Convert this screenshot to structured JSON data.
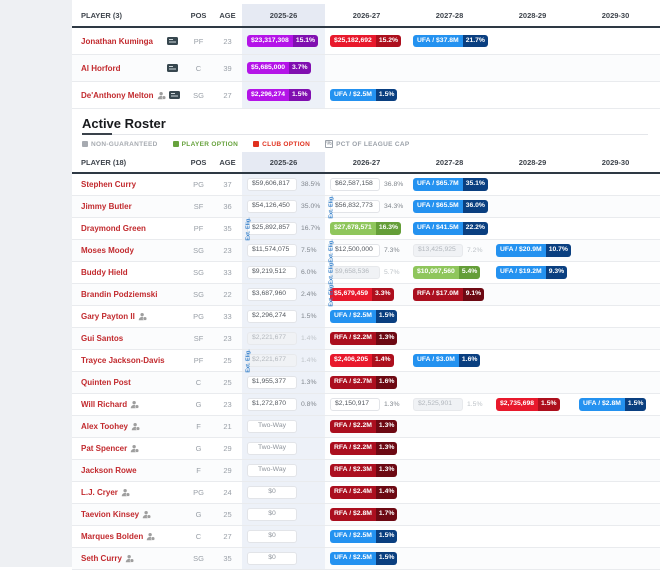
{
  "columns": {
    "player_pending": "PLAYER (3)",
    "player_active": "PLAYER (18)",
    "pos": "POS",
    "age": "AGE",
    "years": [
      "2025-26",
      "2026-27",
      "2027-28",
      "2028-29",
      "2029-30"
    ]
  },
  "active_section": {
    "title": "Active Roster",
    "legend": {
      "non_guaranteed": "NON-GUARANTEED",
      "player_option": "PLAYER OPTION",
      "club_option": "CLUB OPTION",
      "pct_cap": "PCT OF LEAGUE CAP",
      "pct_glyph": "%"
    }
  },
  "colors": {
    "cap_hold": "#b414e8",
    "cap_hold_dark": "#800fb0",
    "club_option": "#e8192c",
    "club_option_dark": "#ad0f1d",
    "player_option": "#8fc65c",
    "player_option_dark": "#649e38",
    "ufa": "#2492f0",
    "ufa_dark": "#0a3f80",
    "rfa": "#ab0f1f",
    "rfa_dark": "#6d0913",
    "non_guaranteed_bg": "#f0f2f5",
    "player_link": "#c22a2e",
    "column_highlight": "#edf1f8"
  },
  "ext_label": "Ext. Elig.",
  "pending": {
    "rows": [
      {
        "name": "Jonathan Kuminga",
        "pos": "PF",
        "age": "23",
        "contract": true,
        "status": false,
        "slots": [
          {
            "c": 0,
            "t": "hold",
            "a": "$23,317,308",
            "p": "15.1%"
          },
          {
            "c": 1,
            "t": "club",
            "a": "$25,182,692",
            "p": "15.2%"
          },
          {
            "c": 2,
            "t": "ufa",
            "a": "UFA / $37.8M",
            "p": "21.7%"
          }
        ]
      },
      {
        "name": "Al Horford",
        "pos": "C",
        "age": "39",
        "contract": true,
        "status": false,
        "slots": [
          {
            "c": 0,
            "t": "hold",
            "a": "$5,685,000",
            "p": "3.7%"
          }
        ]
      },
      {
        "name": "De'Anthony Melton",
        "pos": "SG",
        "age": "27",
        "contract": true,
        "status": true,
        "slots": [
          {
            "c": 0,
            "t": "hold",
            "a": "$2,296,274",
            "p": "1.5%"
          },
          {
            "c": 1,
            "t": "ufa",
            "a": "UFA / $2.5M",
            "p": "1.5%"
          }
        ]
      }
    ]
  },
  "active": {
    "rows": [
      {
        "name": "Stephen Curry",
        "pos": "PG",
        "age": "37",
        "status": false,
        "slots": [
          {
            "c": 0,
            "t": "plain",
            "a": "$59,606,817",
            "p": "38.5%"
          },
          {
            "c": 1,
            "t": "plain",
            "a": "$62,587,158",
            "p": "36.8%"
          },
          {
            "c": 2,
            "t": "ufa",
            "a": "UFA / $65.7M",
            "p": "35.1%"
          }
        ]
      },
      {
        "name": "Jimmy Butler",
        "pos": "SF",
        "age": "36",
        "status": false,
        "slots": [
          {
            "c": 0,
            "t": "plain",
            "a": "$54,126,450",
            "p": "35.0%"
          },
          {
            "c": 1,
            "t": "plain",
            "a": "$56,832,773",
            "p": "34.3%",
            "e": true
          },
          {
            "c": 2,
            "t": "ufa",
            "a": "UFA / $65.5M",
            "p": "36.0%"
          }
        ]
      },
      {
        "name": "Draymond Green",
        "pos": "PF",
        "age": "35",
        "status": false,
        "slots": [
          {
            "c": 0,
            "t": "plain",
            "a": "$25,892,857",
            "p": "16.7%",
            "e": true
          },
          {
            "c": 1,
            "t": "player",
            "a": "$27,678,571",
            "p": "16.3%"
          },
          {
            "c": 2,
            "t": "ufa",
            "a": "UFA / $41.5M",
            "p": "22.2%"
          }
        ]
      },
      {
        "name": "Moses Moody",
        "pos": "SG",
        "age": "23",
        "status": false,
        "slots": [
          {
            "c": 0,
            "t": "plain",
            "a": "$11,574,075",
            "p": "7.5%"
          },
          {
            "c": 1,
            "t": "plain",
            "a": "$12,500,000",
            "p": "7.3%",
            "e": true
          },
          {
            "c": 2,
            "t": "ng",
            "a": "$13,425,925",
            "p": "7.2%"
          },
          {
            "c": 3,
            "t": "ufa",
            "a": "UFA / $20.9M",
            "p": "10.7%"
          }
        ]
      },
      {
        "name": "Buddy Hield",
        "pos": "SG",
        "age": "33",
        "status": false,
        "slots": [
          {
            "c": 0,
            "t": "plain",
            "a": "$9,219,512",
            "p": "6.0%"
          },
          {
            "c": 1,
            "t": "ng",
            "a": "$9,658,536",
            "p": "5.7%",
            "e": true
          },
          {
            "c": 2,
            "t": "player",
            "a": "$10,097,560",
            "p": "5.4%"
          },
          {
            "c": 3,
            "t": "ufa",
            "a": "UFA / $19.2M",
            "p": "9.3%"
          }
        ]
      },
      {
        "name": "Brandin Podziemski",
        "pos": "SG",
        "age": "22",
        "status": false,
        "slots": [
          {
            "c": 0,
            "t": "plain",
            "a": "$3,687,960",
            "p": "2.4%"
          },
          {
            "c": 1,
            "t": "club",
            "a": "$5,679,459",
            "p": "3.3%",
            "e": true
          },
          {
            "c": 2,
            "t": "rfa",
            "a": "RFA / $17.0M",
            "p": "9.1%"
          }
        ]
      },
      {
        "name": "Gary Payton II",
        "pos": "PG",
        "age": "33",
        "status": true,
        "slots": [
          {
            "c": 0,
            "t": "plain",
            "a": "$2,296,274",
            "p": "1.5%"
          },
          {
            "c": 1,
            "t": "ufa",
            "a": "UFA / $2.5M",
            "p": "1.5%"
          }
        ]
      },
      {
        "name": "Gui Santos",
        "pos": "SF",
        "age": "23",
        "status": false,
        "slots": [
          {
            "c": 0,
            "t": "ng",
            "a": "$2,221,677",
            "p": "1.4%"
          },
          {
            "c": 1,
            "t": "rfa",
            "a": "RFA / $2.2M",
            "p": "1.3%"
          }
        ]
      },
      {
        "name": "Trayce Jackson-Davis",
        "pos": "PF",
        "age": "25",
        "status": false,
        "slots": [
          {
            "c": 0,
            "t": "ng",
            "a": "$2,221,677",
            "p": "1.4%",
            "e": true
          },
          {
            "c": 1,
            "t": "club",
            "a": "$2,406,205",
            "p": "1.4%"
          },
          {
            "c": 2,
            "t": "ufa",
            "a": "UFA / $3.0M",
            "p": "1.6%"
          }
        ]
      },
      {
        "name": "Quinten Post",
        "pos": "C",
        "age": "25",
        "status": false,
        "slots": [
          {
            "c": 0,
            "t": "plain",
            "a": "$1,955,377",
            "p": "1.3%"
          },
          {
            "c": 1,
            "t": "rfa",
            "a": "RFA / $2.7M",
            "p": "1.6%"
          }
        ]
      },
      {
        "name": "Will Richard",
        "pos": "G",
        "age": "23",
        "status": true,
        "slots": [
          {
            "c": 0,
            "t": "plain",
            "a": "$1,272,870",
            "p": "0.8%"
          },
          {
            "c": 1,
            "t": "plain",
            "a": "$2,150,917",
            "p": "1.3%"
          },
          {
            "c": 2,
            "t": "ng",
            "a": "$2,525,901",
            "p": "1.5%"
          },
          {
            "c": 3,
            "t": "club",
            "a": "$2,735,698",
            "p": "1.5%"
          },
          {
            "c": 4,
            "t": "ufa",
            "a": "UFA / $2.8M",
            "p": "1.5%"
          }
        ]
      },
      {
        "name": "Alex Toohey",
        "pos": "F",
        "age": "21",
        "status": true,
        "slots": [
          {
            "c": 0,
            "t": "twoway",
            "a": "Two-Way"
          },
          {
            "c": 1,
            "t": "rfa",
            "a": "RFA / $2.2M",
            "p": "1.3%"
          }
        ]
      },
      {
        "name": "Pat Spencer",
        "pos": "G",
        "age": "29",
        "status": true,
        "slots": [
          {
            "c": 0,
            "t": "twoway",
            "a": "Two-Way"
          },
          {
            "c": 1,
            "t": "rfa",
            "a": "RFA / $2.2M",
            "p": "1.3%"
          }
        ]
      },
      {
        "name": "Jackson Rowe",
        "pos": "F",
        "age": "29",
        "status": false,
        "slots": [
          {
            "c": 0,
            "t": "twoway",
            "a": "Two-Way"
          },
          {
            "c": 1,
            "t": "rfa",
            "a": "RFA / $2.3M",
            "p": "1.3%"
          }
        ]
      },
      {
        "name": "L.J. Cryer",
        "pos": "PG",
        "age": "24",
        "status": true,
        "slots": [
          {
            "c": 0,
            "t": "zero",
            "a": "$0"
          },
          {
            "c": 1,
            "t": "rfa",
            "a": "RFA / $2.4M",
            "p": "1.4%"
          }
        ]
      },
      {
        "name": "Taevion Kinsey",
        "pos": "G",
        "age": "25",
        "status": true,
        "slots": [
          {
            "c": 0,
            "t": "zero",
            "a": "$0"
          },
          {
            "c": 1,
            "t": "rfa",
            "a": "RFA / $2.8M",
            "p": "1.7%"
          }
        ]
      },
      {
        "name": "Marques Bolden",
        "pos": "C",
        "age": "27",
        "status": true,
        "slots": [
          {
            "c": 0,
            "t": "zero",
            "a": "$0"
          },
          {
            "c": 1,
            "t": "ufa",
            "a": "UFA / $2.5M",
            "p": "1.5%"
          }
        ]
      },
      {
        "name": "Seth Curry",
        "pos": "SG",
        "age": "35",
        "status": true,
        "slots": [
          {
            "c": 0,
            "t": "zero",
            "a": "$0"
          },
          {
            "c": 1,
            "t": "ufa",
            "a": "UFA / $2.5M",
            "p": "1.5%"
          }
        ]
      }
    ]
  }
}
